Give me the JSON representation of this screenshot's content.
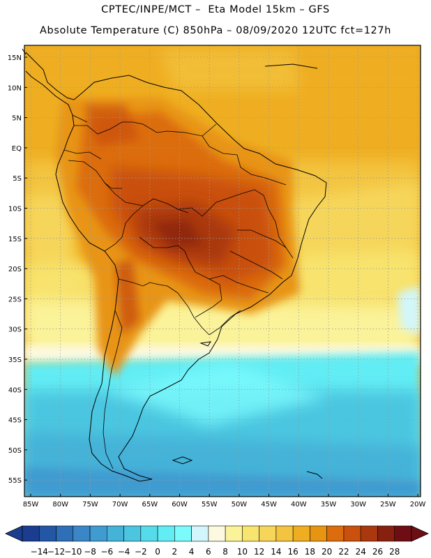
{
  "header": {
    "line1": "CPTEC/INPE/MCT –  Eta Model 15km – GFS",
    "line2": "Absolute Temperature (C) 850hPa – 08/09/2020 12UTC fct=127h"
  },
  "map": {
    "lat_labels": [
      "15N",
      "10N",
      "5N",
      "EQ",
      "5S",
      "10S",
      "15S",
      "20S",
      "25S",
      "30S",
      "35S",
      "40S",
      "45S",
      "50S",
      "55S"
    ],
    "lon_labels": [
      "85W",
      "80W",
      "75W",
      "70W",
      "65W",
      "60W",
      "55W",
      "50W",
      "45W",
      "40W",
      "35W",
      "30W",
      "25W",
      "20W"
    ]
  },
  "colorbar": {
    "labels": [
      "-14",
      "-12",
      "-10",
      "-8",
      "-6",
      "-4",
      "-2",
      "0",
      "2",
      "4",
      "6",
      "8",
      "10",
      "12",
      "14",
      "16",
      "18",
      "20",
      "22",
      "24",
      "26",
      "28"
    ],
    "colors": [
      "#1a3d8f",
      "#2456a6",
      "#2f6fb8",
      "#3a86c6",
      "#3f9bd0",
      "#45b2d8",
      "#4cc6e0",
      "#55dbea",
      "#62ecf4",
      "#7cfbfd",
      "#d2f6fb",
      "#fdf9e0",
      "#fbf39a",
      "#f8e570",
      "#f6d65a",
      "#f3c43f",
      "#efae21",
      "#e89413",
      "#dc6d0e",
      "#c9500d",
      "#a9380e",
      "#87210f",
      "#6e0e14"
    ]
  }
}
